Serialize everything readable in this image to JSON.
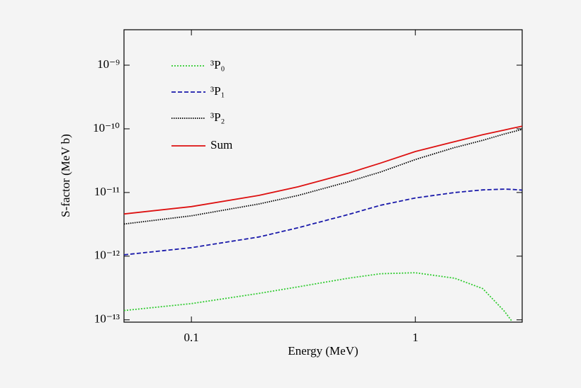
{
  "chart_data": {
    "type": "line",
    "x_label": "Energy (MeV)",
    "y_label": "S-factor (MeV b)",
    "xscale": "log",
    "yscale": "log",
    "xlim": [
      0.05,
      3
    ],
    "ylim": [
      9.2e-14,
      3.6e-09
    ],
    "xticks": [
      0.1,
      1
    ],
    "yticks": [
      {
        "value": 1e-13,
        "label": "10⁻¹³"
      },
      {
        "value": 1e-12,
        "label": "10⁻¹²"
      },
      {
        "value": 1e-11,
        "label": "10⁻¹¹"
      },
      {
        "value": 1e-10,
        "label": "10⁻¹⁰"
      },
      {
        "value": 1e-09,
        "label": "10⁻⁹"
      }
    ],
    "x": [
      0.05,
      0.1,
      0.2,
      0.3,
      0.5,
      0.7,
      1,
      1.5,
      2,
      2.5,
      2.7,
      3
    ],
    "series": [
      {
        "name": "³P₀",
        "color": "#33cc33",
        "dash": "2,2",
        "values": [
          1.4e-13,
          1.8e-13,
          2.6e-13,
          3.3e-13,
          4.5e-13,
          5.3e-13,
          5.5e-13,
          4.5e-13,
          3.1e-13,
          1.36e-13,
          9.5e-14,
          null
        ]
      },
      {
        "name": "³P₁",
        "color": "#1a1aaa",
        "dash": "6,3",
        "values": [
          1.05e-12,
          1.36e-12,
          2e-12,
          2.8e-12,
          4.5e-12,
          6.3e-12,
          8.2e-12,
          1e-11,
          1.1e-11,
          1.13e-11,
          1.12e-11,
          1.09e-11
        ]
      },
      {
        "name": "³P₂",
        "color": "#000000",
        "dash": "1.5,1.5",
        "values": [
          3.2e-12,
          4.3e-12,
          6.6e-12,
          9e-12,
          1.47e-11,
          2.1e-11,
          3.3e-11,
          5.1e-11,
          6.6e-11,
          8.3e-11,
          8.9e-11,
          9.8e-11
        ]
      },
      {
        "name": "Sum",
        "color": "#dd1111",
        "dash": "none",
        "values": [
          4.6e-12,
          6e-12,
          9e-12,
          1.23e-11,
          2e-11,
          2.9e-11,
          4.4e-11,
          6.3e-11,
          8.1e-11,
          9.6e-11,
          1.02e-10,
          1.1e-10
        ]
      }
    ]
  }
}
